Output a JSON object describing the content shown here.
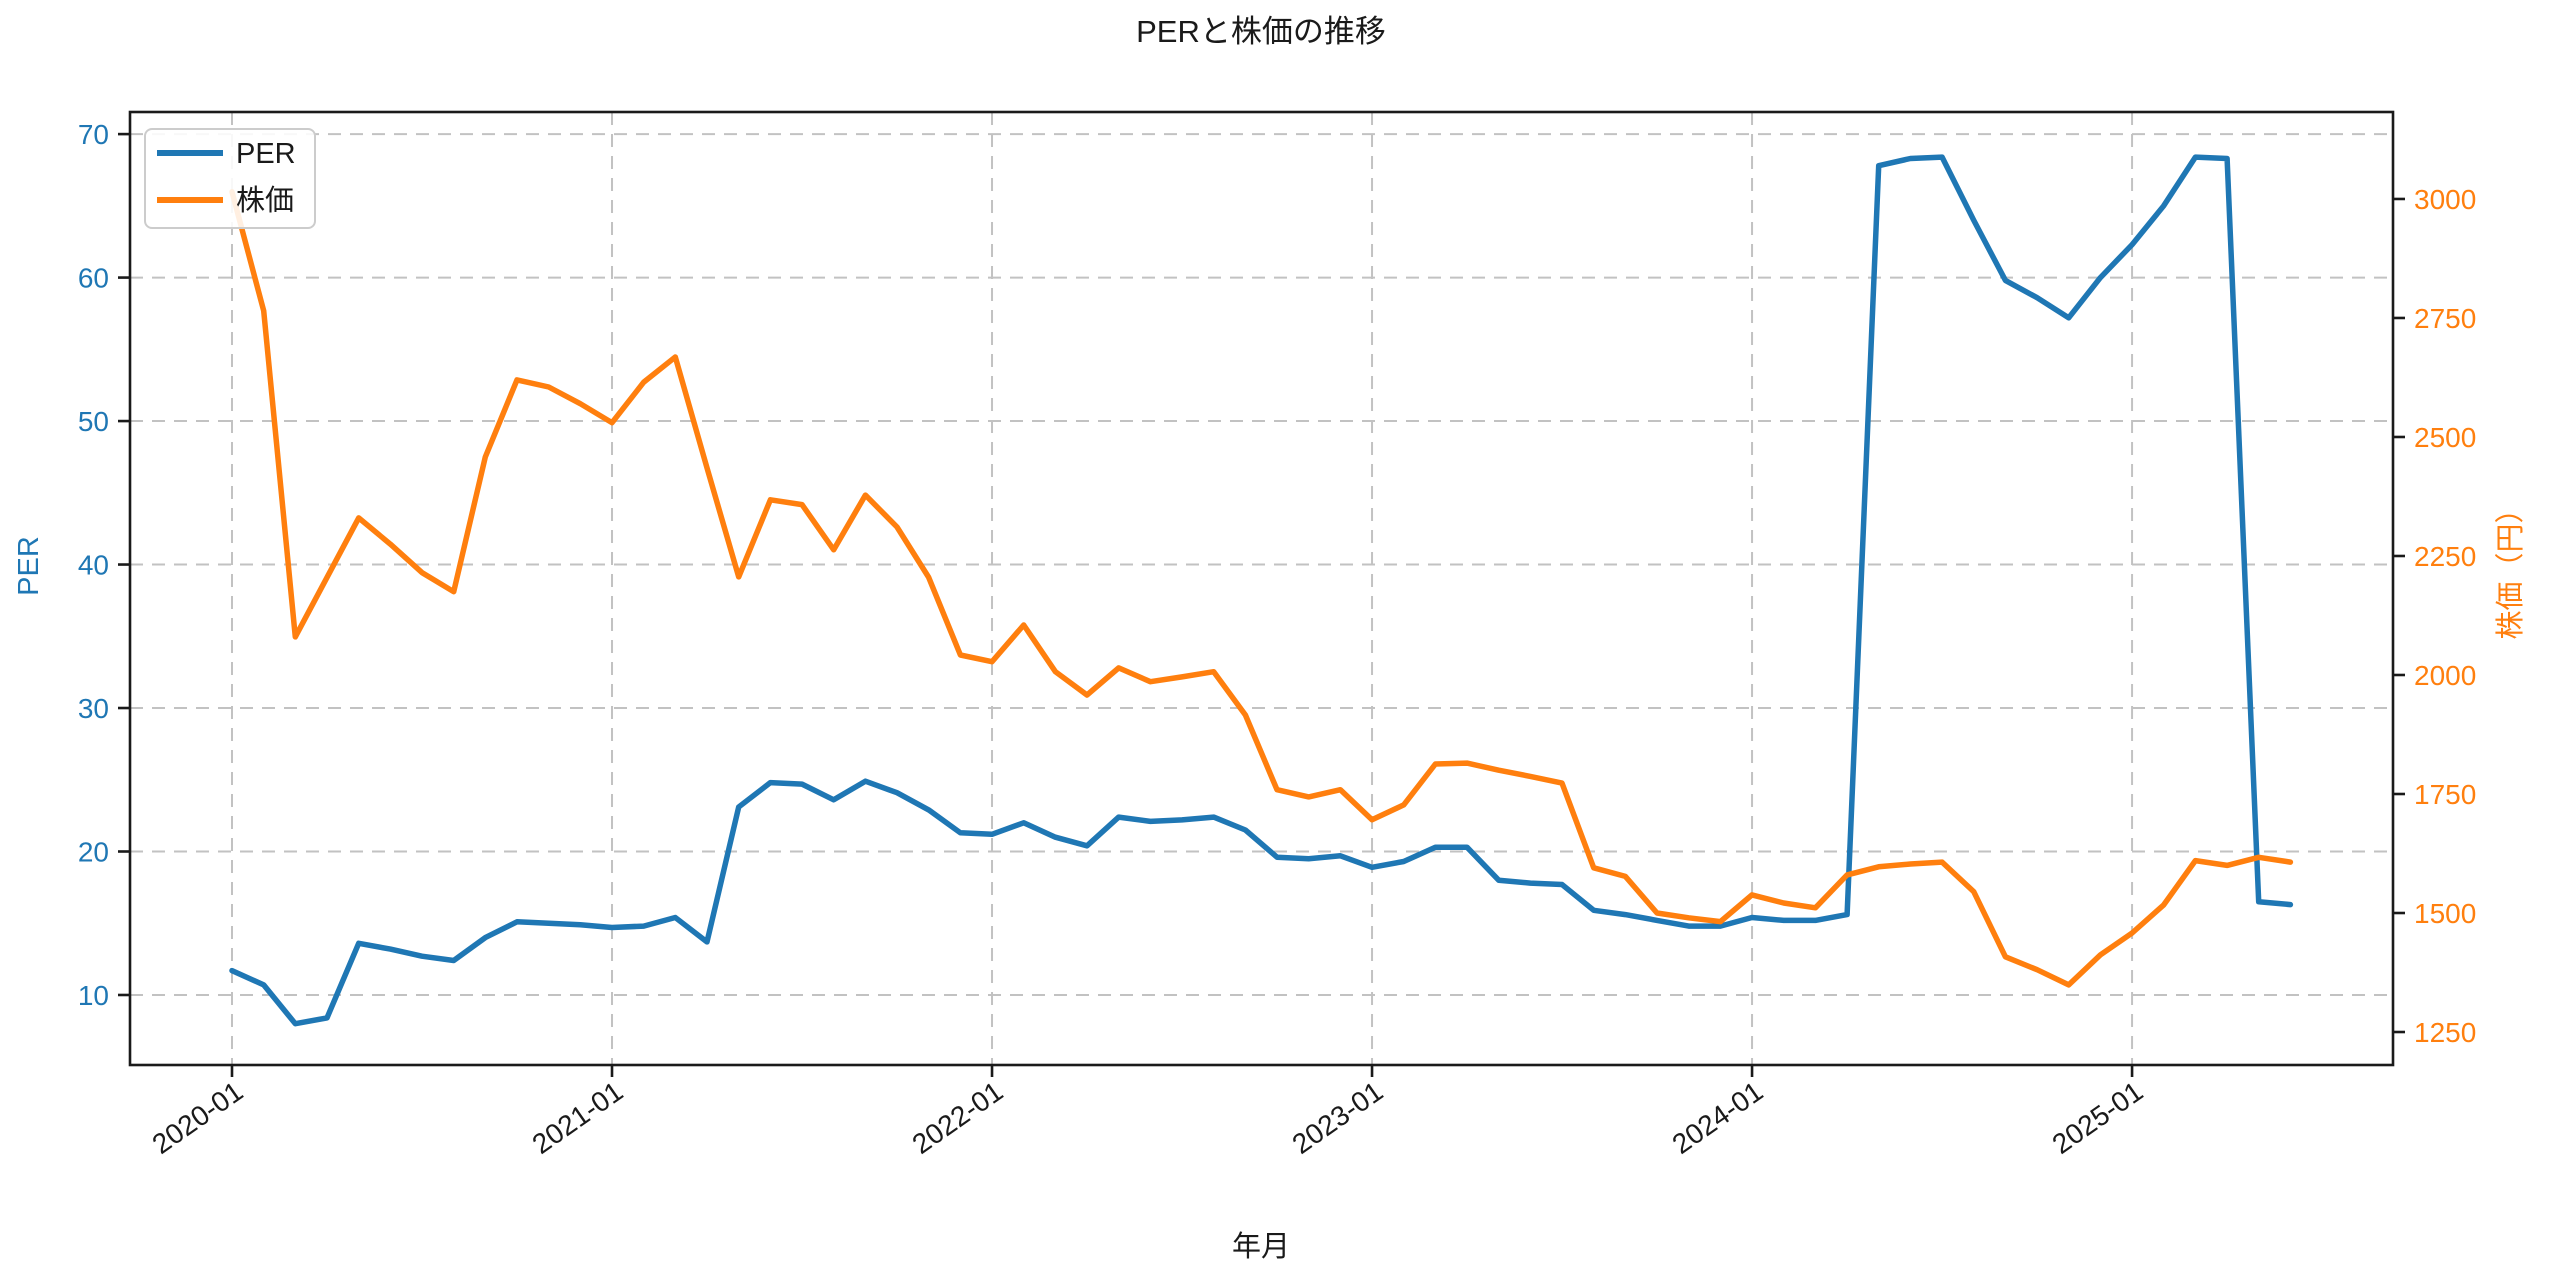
{
  "chart_data": {
    "type": "line",
    "title": "PERと株価の推移",
    "xlabel": "年月",
    "ylabel_left": "PER",
    "ylabel_right": "株価（円）",
    "grid": true,
    "grid_style": "dashed",
    "legend_position": "upper left",
    "colors": {
      "per": "#1f77b4",
      "stock": "#ff7f0e",
      "grid": "#c2c2c2",
      "spine": "#1a1a1a"
    },
    "x": [
      "2020-01",
      "2020-02",
      "2020-03",
      "2020-04",
      "2020-05",
      "2020-06",
      "2020-07",
      "2020-08",
      "2020-09",
      "2020-10",
      "2020-11",
      "2020-12",
      "2021-01",
      "2021-02",
      "2021-03",
      "2021-04",
      "2021-05",
      "2021-06",
      "2021-07",
      "2021-08",
      "2021-09",
      "2021-10",
      "2021-11",
      "2021-12",
      "2022-01",
      "2022-02",
      "2022-03",
      "2022-04",
      "2022-05",
      "2022-06",
      "2022-07",
      "2022-08",
      "2022-09",
      "2022-10",
      "2022-11",
      "2022-12",
      "2023-01",
      "2023-02",
      "2023-03",
      "2023-04",
      "2023-05",
      "2023-06",
      "2023-07",
      "2023-08",
      "2023-09",
      "2023-10",
      "2023-11",
      "2023-12",
      "2024-01",
      "2024-02",
      "2024-03",
      "2024-04",
      "2024-05",
      "2024-06",
      "2024-07",
      "2024-08",
      "2024-09",
      "2024-10",
      "2024-11",
      "2024-12",
      "2025-01",
      "2025-02",
      "2025-03",
      "2025-04",
      "2025-05",
      "2025-06"
    ],
    "series": [
      {
        "name": "PER",
        "axis": "left",
        "color": "#1f77b4",
        "values": [
          11.7,
          10.7,
          8.0,
          8.4,
          13.6,
          13.2,
          12.7,
          12.4,
          14.0,
          15.1,
          15.0,
          14.9,
          14.7,
          14.8,
          15.4,
          13.7,
          23.1,
          24.8,
          24.7,
          23.6,
          24.9,
          24.1,
          22.9,
          21.3,
          21.2,
          22.0,
          21.0,
          20.4,
          22.4,
          22.1,
          22.2,
          22.4,
          21.5,
          19.6,
          19.5,
          19.7,
          18.9,
          19.3,
          20.3,
          20.3,
          18.0,
          17.8,
          17.7,
          15.9,
          15.6,
          15.2,
          14.8,
          14.8,
          15.4,
          15.2,
          15.2,
          15.6,
          67.8,
          68.3,
          68.4,
          64.0,
          59.8,
          58.6,
          57.2,
          60.0,
          62.3,
          65.0,
          68.4,
          68.3,
          16.5,
          16.3
        ]
      },
      {
        "name": "株価",
        "axis": "right",
        "color": "#ff7f0e",
        "values": [
          3015,
          2765,
          2080,
          2205,
          2330,
          2275,
          2215,
          2175,
          2458,
          2620,
          2605,
          2570,
          2530,
          2615,
          2668,
          2435,
          2206,
          2368,
          2358,
          2263,
          2378,
          2311,
          2205,
          2042,
          2028,
          2105,
          2007,
          1958,
          2015,
          1986,
          1996,
          2007,
          1916,
          1759,
          1744,
          1759,
          1696,
          1727,
          1813,
          1815,
          1800,
          1787,
          1773,
          1595,
          1577,
          1500,
          1490,
          1482,
          1538,
          1521,
          1511,
          1580,
          1597,
          1603,
          1607,
          1545,
          1408,
          1381,
          1349,
          1412,
          1458,
          1517,
          1610,
          1600,
          1617,
          1607
        ]
      }
    ],
    "axes": {
      "x_ticks": [
        "2020-01",
        "2021-01",
        "2022-01",
        "2023-01",
        "2024-01",
        "2025-01"
      ],
      "left": {
        "ticks": [
          10,
          20,
          30,
          40,
          50,
          60,
          70
        ],
        "range": [
          5.12,
          71.54
        ],
        "color": "#1f77b4"
      },
      "right": {
        "ticks": [
          1250,
          1500,
          1750,
          2000,
          2250,
          2500,
          2750,
          3000
        ],
        "range": [
          1180.7,
          3182.7
        ],
        "color": "#ff7f0e"
      }
    },
    "x_index_range": [
      -3.221,
      68.24
    ]
  }
}
